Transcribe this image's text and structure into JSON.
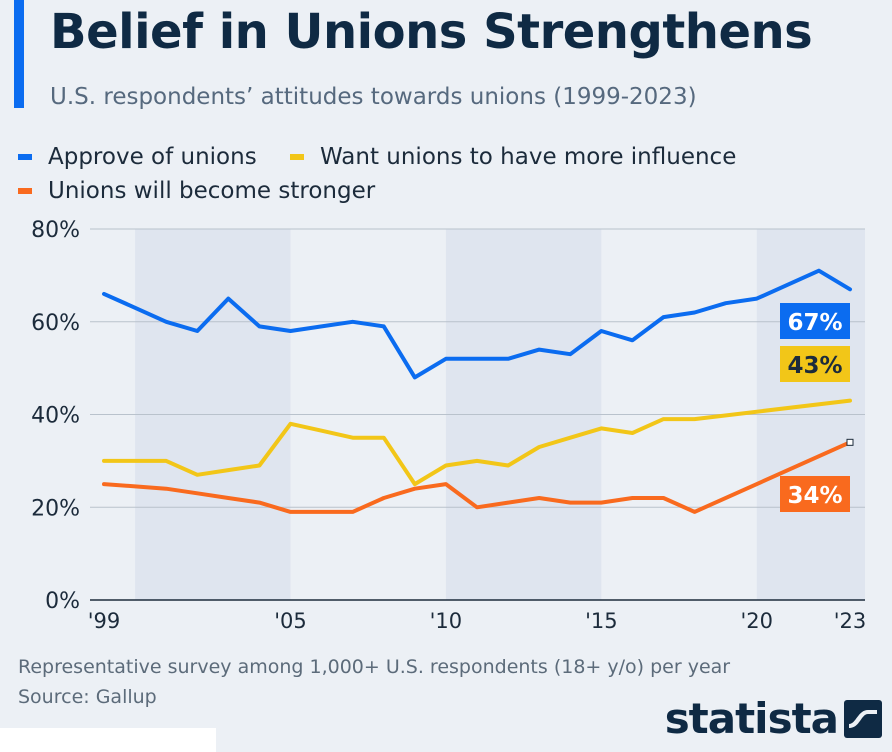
{
  "header": {
    "title": "Belief in Unions Strengthens",
    "subtitle": "U.S. respondents’ attitudes towards unions (1999-2023)"
  },
  "footer": {
    "note": "Representative survey among 1,000+ U.S. respondents (18+ y/o) per year",
    "source": "Source: Gallup",
    "logo": "statista"
  },
  "colors": {
    "approve": "#0b6cf0",
    "influence": "#f2c618",
    "stronger": "#f96a1e",
    "band": "#dfe5ef",
    "grid": "#b9c2cc"
  },
  "chart_data": {
    "type": "line",
    "x": [
      1999,
      2000,
      2001,
      2002,
      2003,
      2004,
      2005,
      2006,
      2007,
      2008,
      2009,
      2010,
      2011,
      2012,
      2013,
      2014,
      2015,
      2016,
      2017,
      2018,
      2019,
      2020,
      2021,
      2022,
      2023
    ],
    "xlim": [
      1999,
      2023
    ],
    "ylim": [
      0,
      80
    ],
    "yticks": [
      0,
      20,
      40,
      60,
      80
    ],
    "ytick_labels": [
      "0%",
      "20%",
      "40%",
      "60%",
      "80%"
    ],
    "xticks": [
      1999,
      2005,
      2010,
      2015,
      2020,
      2023
    ],
    "xtick_labels": [
      "'99",
      "'05",
      "'10",
      "'15",
      "'20",
      "'23"
    ],
    "shaded_ranges": [
      [
        2000,
        2005
      ],
      [
        2010,
        2015
      ],
      [
        2020,
        2023
      ]
    ],
    "grid": true,
    "legend_position": "top-left",
    "series": [
      {
        "name": "Approve of unions",
        "color_key": "approve",
        "values": [
          66,
          63,
          60,
          58,
          65,
          59,
          58,
          59,
          60,
          59,
          48,
          52,
          52,
          52,
          54,
          53,
          58,
          56,
          61,
          62,
          64,
          65,
          68,
          71,
          67
        ],
        "end_label": "67%"
      },
      {
        "name": "Want unions to have more influence",
        "color_key": "influence",
        "values": [
          30,
          30,
          30,
          27,
          28,
          29,
          38,
          36.5,
          35,
          35,
          25,
          29,
          30,
          29,
          33,
          35,
          37,
          36,
          39,
          39,
          null,
          null,
          null,
          null,
          43
        ],
        "end_label": "43%"
      },
      {
        "name": "Unions will become stronger",
        "color_key": "stronger",
        "values": [
          25,
          24.5,
          24,
          23,
          22,
          21,
          19,
          19,
          19,
          22,
          24,
          25,
          20,
          21,
          22,
          21,
          21,
          22,
          22,
          19,
          null,
          null,
          null,
          null,
          34
        ],
        "end_label": "34%"
      }
    ]
  }
}
